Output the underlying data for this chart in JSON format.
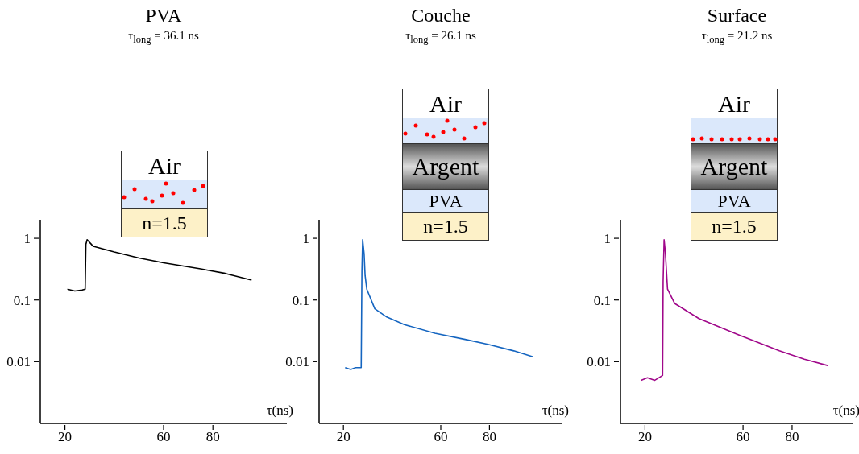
{
  "chart_data": [
    {
      "type": "line",
      "title": "PVA",
      "subtitle": "τ$_{long}$ = 36.1 ns",
      "xlabel": "τ(ns)",
      "annotations": [
        "Air",
        "n=1.5"
      ],
      "log": "y",
      "xlim": [
        10,
        110
      ],
      "xticks": [
        20,
        60,
        80
      ],
      "ylim": [
        0.001,
        2
      ],
      "yticks": [
        1,
        0.1,
        0.01
      ],
      "color": "#000000",
      "x": [
        21,
        24,
        27,
        28.2,
        28.5,
        29,
        31.5,
        40,
        50,
        60,
        75,
        85,
        95.7
      ],
      "values": [
        0.15,
        0.14,
        0.145,
        0.15,
        0.8,
        0.95,
        0.74,
        0.6,
        0.48,
        0.4,
        0.32,
        0.27,
        0.21
      ]
    },
    {
      "type": "line",
      "title": "Couche",
      "subtitle": "τ$_{long}$ = 26.1 ns",
      "xlabel": "τ(ns)",
      "annotations": [
        "Air",
        "Argent",
        "PVA",
        "n=1.5"
      ],
      "log": "y",
      "xlim": [
        10,
        110
      ],
      "xticks": [
        20,
        60,
        80
      ],
      "ylim": [
        0.001,
        2
      ],
      "yticks": [
        1,
        0.1,
        0.01
      ],
      "color": "#1565c0",
      "x": [
        20.7,
        23,
        25,
        27.3,
        27.6,
        27.9,
        28.5,
        28.9,
        29.6,
        32.9,
        37.8,
        45,
        57.6,
        70,
        79.7,
        90,
        97.9
      ],
      "values": [
        0.008,
        0.0075,
        0.008,
        0.008,
        0.3,
        0.95,
        0.56,
        0.25,
        0.15,
        0.072,
        0.053,
        0.04,
        0.029,
        0.023,
        0.019,
        0.015,
        0.012
      ]
    },
    {
      "type": "line",
      "title": "Surface",
      "subtitle": "τ$_{long}$ = 21.2 ns",
      "xlabel": "τ(ns)",
      "annotations": [
        "Air",
        "Argent",
        "PVA",
        "n=1.5"
      ],
      "log": "y",
      "xlim": [
        10,
        105
      ],
      "xticks": [
        20,
        60,
        80
      ],
      "ylim": [
        0.001,
        2
      ],
      "yticks": [
        1,
        0.1,
        0.01
      ],
      "color": "#a0088a",
      "x": [
        18.4,
        21,
        24,
        27.2,
        27.4,
        27.8,
        28.3,
        29.2,
        32.1,
        42,
        58.4,
        74.8,
        85,
        94.8
      ],
      "values": [
        0.005,
        0.0055,
        0.005,
        0.006,
        0.2,
        0.95,
        0.6,
        0.15,
        0.088,
        0.05,
        0.027,
        0.015,
        0.011,
        0.0086
      ]
    }
  ]
}
